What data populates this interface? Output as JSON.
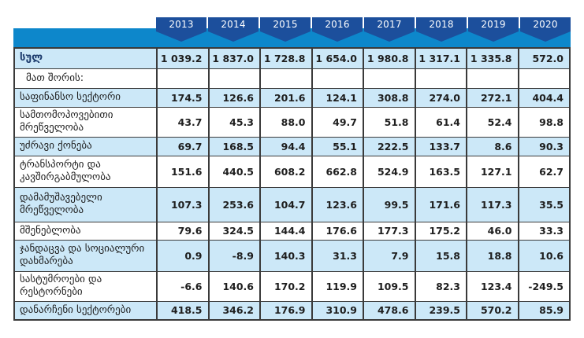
{
  "table": {
    "years": [
      "2013",
      "2014",
      "2015",
      "2016",
      "2017",
      "2018",
      "2019",
      "2020"
    ],
    "total_row": {
      "label": "სულ",
      "values": [
        "1 039.2",
        "1 837.0",
        "1 728.8",
        "1 654.0",
        "1 980.8",
        "1 317.1",
        "1 335.8",
        "572.0"
      ]
    },
    "subheader": "მათ შორის:",
    "rows": [
      {
        "label": "საფინანსო სექტორი",
        "shaded": true,
        "values": [
          "174.5",
          "126.6",
          "201.6",
          "124.1",
          "308.8",
          "274.0",
          "272.1",
          "404.4"
        ]
      },
      {
        "label": "სამთომოპოვებითი მრეწველობა",
        "shaded": false,
        "values": [
          "43.7",
          "45.3",
          "88.0",
          "49.7",
          "51.8",
          "61.4",
          "52.4",
          "98.8"
        ]
      },
      {
        "label": "უძრავი ქონება",
        "shaded": true,
        "values": [
          "69.7",
          "168.5",
          "94.4",
          "55.1",
          "222.5",
          "133.7",
          "8.6",
          "90.3"
        ]
      },
      {
        "label": "ტრანსპორტი და კავშირგაბმულობა",
        "shaded": false,
        "values": [
          "151.6",
          "440.5",
          "608.2",
          "662.8",
          "524.9",
          "163.5",
          "127.1",
          "62.7"
        ]
      },
      {
        "label": "დამამუშავებელი მრეწველობა",
        "shaded": true,
        "values": [
          "107.3",
          "253.6",
          "104.7",
          "123.6",
          "99.5",
          "171.6",
          "117.3",
          "35.5"
        ]
      },
      {
        "label": "მშენებლობა",
        "shaded": false,
        "values": [
          "79.6",
          "324.5",
          "144.4",
          "176.6",
          "177.3",
          "175.2",
          "46.0",
          "33.3"
        ]
      },
      {
        "label": "ჯანდაცვა და სოციალური დახმარება",
        "shaded": true,
        "values": [
          "0.9",
          "-8.9",
          "140.3",
          "31.3",
          "7.9",
          "15.8",
          "18.8",
          "10.6"
        ]
      },
      {
        "label": "სასტუმროები და რესტორნები",
        "shaded": false,
        "values": [
          "-6.6",
          "140.6",
          "170.2",
          "119.9",
          "109.5",
          "82.3",
          "123.4",
          "-249.5"
        ]
      },
      {
        "label": "დანარჩენი სექტორები",
        "shaded": true,
        "values": [
          "418.5",
          "346.2",
          "176.9",
          "310.9",
          "478.6",
          "239.5",
          "570.2",
          "85.9"
        ]
      }
    ]
  },
  "colors": {
    "year_box": "#1c4f9c",
    "band": "#0d87cb",
    "shaded_row": "#cce8f8",
    "border": "#3a3a3a",
    "text": "#1e1e1e",
    "header_text": "#ffffff"
  },
  "chart_data": {
    "type": "table",
    "title": "",
    "categories": [
      "2013",
      "2014",
      "2015",
      "2016",
      "2017",
      "2018",
      "2019",
      "2020"
    ],
    "series": [
      {
        "name": "სულ",
        "values": [
          1039.2,
          1837.0,
          1728.8,
          1654.0,
          1980.8,
          1317.1,
          1335.8,
          572.0
        ]
      },
      {
        "name": "საფინანსო სექტორი",
        "values": [
          174.5,
          126.6,
          201.6,
          124.1,
          308.8,
          274.0,
          272.1,
          404.4
        ]
      },
      {
        "name": "სამთომოპოვებითი მრეწველობა",
        "values": [
          43.7,
          45.3,
          88.0,
          49.7,
          51.8,
          61.4,
          52.4,
          98.8
        ]
      },
      {
        "name": "უძრავი ქონება",
        "values": [
          69.7,
          168.5,
          94.4,
          55.1,
          222.5,
          133.7,
          8.6,
          90.3
        ]
      },
      {
        "name": "ტრანსპორტი და კავშირგაბმულობა",
        "values": [
          151.6,
          440.5,
          608.2,
          662.8,
          524.9,
          163.5,
          127.1,
          62.7
        ]
      },
      {
        "name": "დამამუშავებელი მრეწველობა",
        "values": [
          107.3,
          253.6,
          104.7,
          123.6,
          99.5,
          171.6,
          117.3,
          35.5
        ]
      },
      {
        "name": "მშენებლობა",
        "values": [
          79.6,
          324.5,
          144.4,
          176.6,
          177.3,
          175.2,
          46.0,
          33.3
        ]
      },
      {
        "name": "ჯანდაცვა და სოციალური დახმარება",
        "values": [
          0.9,
          -8.9,
          140.3,
          31.3,
          7.9,
          15.8,
          18.8,
          10.6
        ]
      },
      {
        "name": "სასტუმროები და რესტორნები",
        "values": [
          -6.6,
          140.6,
          170.2,
          119.9,
          109.5,
          82.3,
          123.4,
          -249.5
        ]
      },
      {
        "name": "დანარჩენი სექტორები",
        "values": [
          418.5,
          346.2,
          176.9,
          310.9,
          478.6,
          239.5,
          570.2,
          85.9
        ]
      }
    ]
  }
}
